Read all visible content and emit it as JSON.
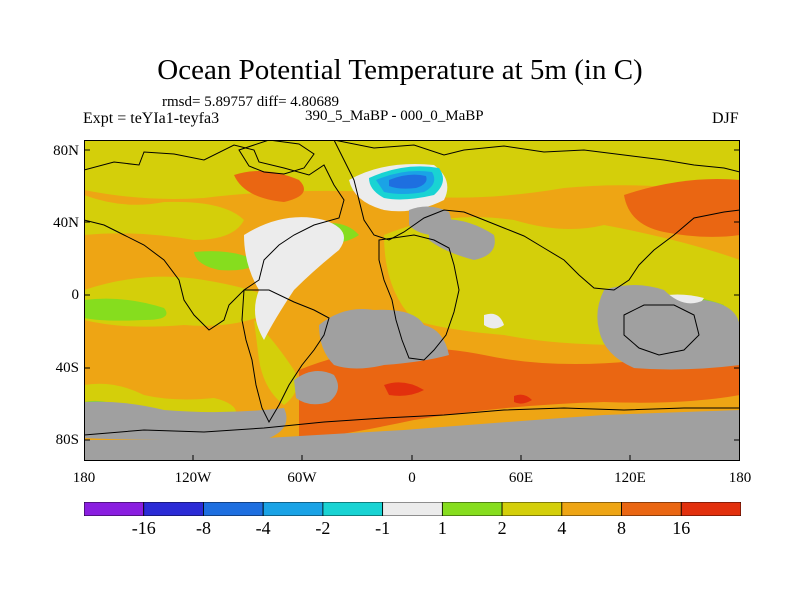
{
  "header": {
    "title": "Ocean Potential Temperature at 5m (in C)",
    "stats": "rmsd= 5.89757 diff= 4.80689",
    "experiment": "Expt = teYIa1-teyfa3",
    "difference": "390_5_MaBP - 000_0_MaBP",
    "season": "DJF"
  },
  "axes": {
    "lat_ticks": [
      "80N",
      "40N",
      "0",
      "40S",
      "80S"
    ],
    "lon_ticks": [
      "180",
      "120W",
      "60W",
      "0",
      "60E",
      "120E",
      "180"
    ]
  },
  "colorbar": {
    "labels": [
      "-16",
      "-8",
      "-4",
      "-2",
      "-1",
      "1",
      "2",
      "4",
      "8",
      "16"
    ],
    "colors": [
      "#8a1ee0",
      "#2b2bd6",
      "#1e6fe0",
      "#1aa3e6",
      "#19d3d3",
      "#ececec",
      "#86dd1e",
      "#d4cf0a",
      "#eea514",
      "#ea6612",
      "#e2300d"
    ]
  },
  "map_colors": {
    "land": "#a0a0a0",
    "background_field": "#eea514",
    "coastline": "#000000"
  }
}
